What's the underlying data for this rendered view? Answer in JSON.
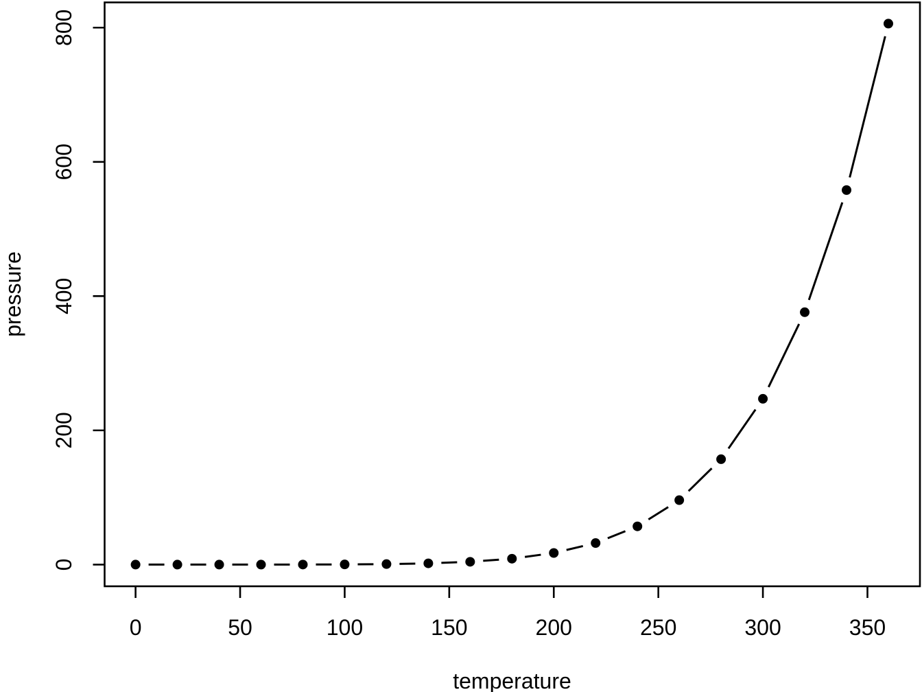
{
  "figure": {
    "background": "#ffffff",
    "foreground": "#000000"
  },
  "chart_data": {
    "type": "line",
    "title": "",
    "xlabel": "temperature",
    "ylabel": "pressure",
    "x": [
      0,
      20,
      40,
      60,
      80,
      100,
      120,
      140,
      160,
      180,
      200,
      220,
      240,
      260,
      280,
      300,
      320,
      340,
      360
    ],
    "y": [
      0.0002,
      0.0012,
      0.006,
      0.03,
      0.09,
      0.27,
      0.75,
      1.85,
      4.2,
      8.8,
      17.3,
      32.1,
      57,
      96,
      157,
      247,
      376,
      558,
      806
    ],
    "x_ticks": [
      0,
      50,
      100,
      150,
      200,
      250,
      300,
      350
    ],
    "y_ticks": [
      0,
      200,
      400,
      600,
      800
    ],
    "xlim": [
      -14.8,
      375.1
    ],
    "ylim": [
      -32.3,
      837.6
    ],
    "marker": "filled-circle",
    "line_style": "solid-segments-with-point-gaps",
    "grid": false,
    "legend": null
  }
}
